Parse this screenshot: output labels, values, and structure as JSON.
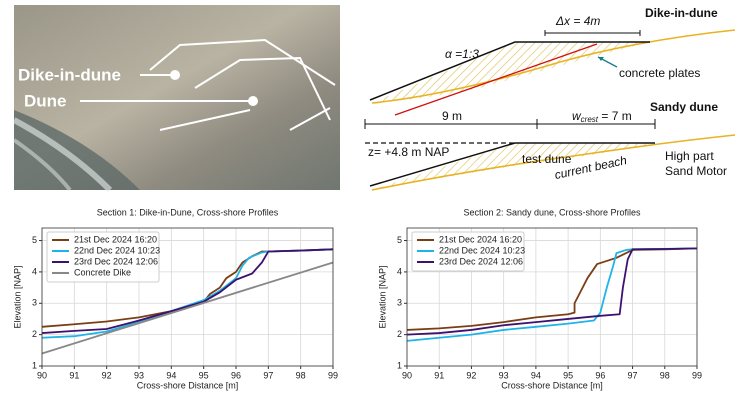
{
  "photo": {
    "labels": [
      "Dike-in-dune",
      "Dune"
    ]
  },
  "diagram": {
    "upper_title": "Dike-in-dune",
    "dx": "Δx = 4m",
    "slope": "α =1:3",
    "plates": "concrete plates",
    "lower_title": "Sandy dune",
    "width": "9 m",
    "crest_symbol": "w",
    "crest_sub": "crest",
    "crest_value": " = 7 m",
    "level": "z= +4.8 m NAP",
    "test_dune": "test dune",
    "beach": "current beach",
    "sand_motor": [
      "High part",
      "Sand Motor"
    ]
  },
  "chart_data": [
    {
      "type": "line",
      "title": "Section 1: Dike-in-Dune, Cross-shore Profiles",
      "x_label": "Cross-shore Distance [m]",
      "y_label": "Elevation [NAP]",
      "xlim": [
        90,
        99
      ],
      "ylim": [
        1,
        5.4
      ],
      "xticks": [
        90,
        91,
        92,
        93,
        94,
        95,
        96,
        97,
        98,
        99
      ],
      "yticks": [
        1,
        2,
        3,
        4,
        5
      ],
      "grid": true,
      "legend": "upper left",
      "series": [
        {
          "name": "21st Dec 2024 16:20",
          "color": "#7a3e14",
          "x": [
            90,
            91,
            92,
            93,
            94,
            95,
            95.2,
            95.5,
            95.7,
            96,
            96.2,
            96.5,
            96.8,
            97,
            98,
            99
          ],
          "values": [
            2.25,
            2.33,
            2.42,
            2.55,
            2.75,
            3.05,
            3.3,
            3.5,
            3.8,
            4.0,
            4.3,
            4.5,
            4.65,
            4.65,
            4.68,
            4.72
          ]
        },
        {
          "name": "22nd Dec 2024 10:23",
          "color": "#1fb4e8",
          "x": [
            90,
            91,
            92,
            93,
            94,
            95,
            95.5,
            96,
            96.2,
            96.4,
            96.8,
            97,
            98,
            99
          ],
          "values": [
            1.9,
            1.95,
            2.1,
            2.4,
            2.75,
            3.1,
            3.4,
            3.8,
            4.2,
            4.45,
            4.62,
            4.65,
            4.68,
            4.72
          ]
        },
        {
          "name": "23rd Dec 2024 12:06",
          "color": "#3d116e",
          "x": [
            90,
            91,
            92,
            93,
            94,
            95,
            95.5,
            96,
            96.5,
            96.8,
            97,
            98,
            99
          ],
          "values": [
            2.05,
            2.12,
            2.18,
            2.45,
            2.75,
            3.05,
            3.35,
            3.75,
            3.95,
            4.3,
            4.65,
            4.68,
            4.72
          ]
        },
        {
          "name": "Concrete Dike",
          "color": "#888888",
          "x": [
            90,
            99
          ],
          "values": [
            1.4,
            4.3
          ]
        }
      ]
    },
    {
      "type": "line",
      "title": "Section 2: Sandy dune, Cross-shore Profiles",
      "x_label": "Cross-shore Distance [m]",
      "y_label": "Elevation [NAP]",
      "xlim": [
        90,
        99
      ],
      "ylim": [
        1,
        5.4
      ],
      "xticks": [
        90,
        91,
        92,
        93,
        94,
        95,
        96,
        97,
        98,
        99
      ],
      "yticks": [
        1,
        2,
        3,
        4,
        5
      ],
      "grid": true,
      "legend": "upper left",
      "series": [
        {
          "name": "21st Dec 2024 16:20",
          "color": "#7a3e14",
          "x": [
            90,
            91,
            92,
            93,
            94,
            95,
            95.2,
            95.2,
            95.4,
            95.6,
            95.9,
            96.5,
            96.8,
            97,
            98,
            99
          ],
          "values": [
            2.15,
            2.2,
            2.28,
            2.4,
            2.55,
            2.65,
            2.7,
            3.0,
            3.4,
            3.8,
            4.25,
            4.45,
            4.6,
            4.7,
            4.72,
            4.75
          ]
        },
        {
          "name": "22nd Dec 2024 10:23",
          "color": "#1fb4e8",
          "x": [
            90,
            91,
            92,
            93,
            94,
            95,
            95.8,
            96,
            96.2,
            96.4,
            96.5,
            96.8,
            97,
            99
          ],
          "values": [
            1.8,
            1.9,
            2.0,
            2.15,
            2.25,
            2.35,
            2.45,
            2.7,
            3.5,
            4.2,
            4.6,
            4.7,
            4.72,
            4.75
          ]
        },
        {
          "name": "23rd Dec 2024 12:06",
          "color": "#3d116e",
          "x": [
            90,
            91,
            92,
            93,
            94,
            95,
            96,
            96.6,
            96.7,
            96.85,
            97,
            98,
            99
          ],
          "values": [
            2.0,
            2.05,
            2.15,
            2.3,
            2.4,
            2.5,
            2.6,
            2.65,
            3.5,
            4.4,
            4.72,
            4.73,
            4.75
          ]
        }
      ]
    }
  ]
}
